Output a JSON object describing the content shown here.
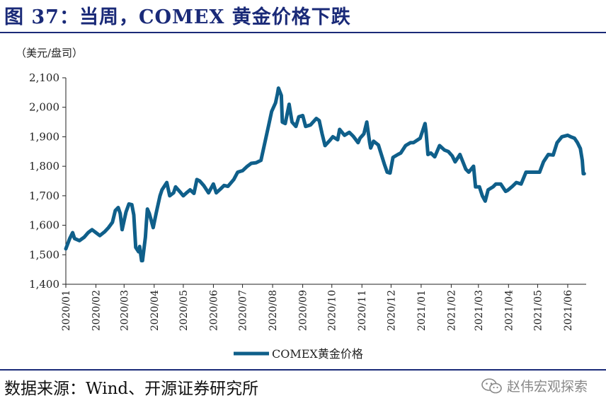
{
  "title": "图 37：当周，COMEX 黄金价格下跌",
  "source": "数据来源：Wind、开源证券研究所",
  "watermark": {
    "text": "赵伟宏观探索",
    "icon": "wechat-icon"
  },
  "colors": {
    "line": "#0f5f8a",
    "title": "#1a2a78"
  },
  "chart_data": {
    "type": "line",
    "title": "",
    "ylabel": "（美元/盘司）",
    "xlabel": "",
    "ylim": [
      1400,
      2100
    ],
    "y_ticks": [
      "1,400",
      "1,500",
      "1,600",
      "1,700",
      "1,800",
      "1,900",
      "2,000",
      "2,100"
    ],
    "y_tick_values": [
      1400,
      1500,
      1600,
      1700,
      1800,
      1900,
      2000,
      2100
    ],
    "x_ticks": [
      "2020/01",
      "2020/02",
      "2020/03",
      "2020/04",
      "2020/05",
      "2020/06",
      "2020/07",
      "2020/08",
      "2020/09",
      "2020/10",
      "2020/11",
      "2020/12",
      "2021/01",
      "2021/02",
      "2021/03",
      "2021/04",
      "2021/05",
      "2021/06"
    ],
    "grid": false,
    "legend": "bottom-center",
    "series": [
      {
        "name": "COMEX黄金价格",
        "x": [
          "2020-01-01",
          "2020-01-05",
          "2020-01-08",
          "2020-01-10",
          "2020-01-15",
          "2020-01-20",
          "2020-01-24",
          "2020-01-28",
          "2020-02-01",
          "2020-02-05",
          "2020-02-10",
          "2020-02-14",
          "2020-02-18",
          "2020-02-21",
          "2020-02-24",
          "2020-02-26",
          "2020-02-28",
          "2020-03-03",
          "2020-03-06",
          "2020-03-09",
          "2020-03-11",
          "2020-03-13",
          "2020-03-16",
          "2020-03-17",
          "2020-03-19",
          "2020-03-20",
          "2020-03-23",
          "2020-03-24",
          "2020-03-25",
          "2020-03-27",
          "2020-03-31",
          "2020-04-03",
          "2020-04-07",
          "2020-04-09",
          "2020-04-14",
          "2020-04-17",
          "2020-04-21",
          "2020-04-23",
          "2020-04-28",
          "2020-05-01",
          "2020-05-05",
          "2020-05-08",
          "2020-05-12",
          "2020-05-15",
          "2020-05-18",
          "2020-05-22",
          "2020-05-27",
          "2020-06-01",
          "2020-06-04",
          "2020-06-08",
          "2020-06-12",
          "2020-06-16",
          "2020-06-22",
          "2020-06-26",
          "2020-07-01",
          "2020-07-06",
          "2020-07-10",
          "2020-07-15",
          "2020-07-20",
          "2020-07-24",
          "2020-07-28",
          "2020-07-31",
          "2020-08-04",
          "2020-08-06",
          "2020-08-07",
          "2020-08-10",
          "2020-08-11",
          "2020-08-14",
          "2020-08-18",
          "2020-08-21",
          "2020-08-25",
          "2020-08-28",
          "2020-09-01",
          "2020-09-04",
          "2020-09-09",
          "2020-09-15",
          "2020-09-18",
          "2020-09-21",
          "2020-09-24",
          "2020-09-29",
          "2020-10-02",
          "2020-10-07",
          "2020-10-09",
          "2020-10-14",
          "2020-10-19",
          "2020-10-23",
          "2020-10-28",
          "2020-10-30",
          "2020-11-03",
          "2020-11-06",
          "2020-11-09",
          "2020-11-10",
          "2020-11-13",
          "2020-11-18",
          "2020-11-24",
          "2020-11-27",
          "2020-11-30",
          "2020-12-03",
          "2020-12-08",
          "2020-12-11",
          "2020-12-16",
          "2020-12-21",
          "2020-12-24",
          "2020-12-31",
          "2021-01-05",
          "2021-01-06",
          "2021-01-08",
          "2021-01-11",
          "2021-01-15",
          "2021-01-20",
          "2021-01-25",
          "2021-01-29",
          "2021-02-02",
          "2021-02-05",
          "2021-02-10",
          "2021-02-16",
          "2021-02-19",
          "2021-02-24",
          "2021-02-26",
          "2021-03-02",
          "2021-03-05",
          "2021-03-08",
          "2021-03-11",
          "2021-03-16",
          "2021-03-19",
          "2021-03-24",
          "2021-03-29",
          "2021-03-31",
          "2021-04-05",
          "2021-04-09",
          "2021-04-14",
          "2021-04-19",
          "2021-04-23",
          "2021-04-28",
          "2021-05-03",
          "2021-05-07",
          "2021-05-12",
          "2021-05-17",
          "2021-05-21",
          "2021-05-26",
          "2021-06-01",
          "2021-06-04",
          "2021-06-08",
          "2021-06-11",
          "2021-06-14",
          "2021-06-16",
          "2021-06-17",
          "2021-06-18"
        ],
        "values": [
          1520,
          1555,
          1575,
          1555,
          1548,
          1560,
          1575,
          1585,
          1575,
          1565,
          1578,
          1592,
          1610,
          1650,
          1660,
          1640,
          1585,
          1645,
          1672,
          1670,
          1635,
          1525,
          1510,
          1528,
          1480,
          1480,
          1560,
          1610,
          1655,
          1640,
          1592,
          1640,
          1700,
          1720,
          1745,
          1700,
          1710,
          1730,
          1712,
          1700,
          1712,
          1720,
          1708,
          1755,
          1750,
          1735,
          1710,
          1740,
          1710,
          1722,
          1735,
          1732,
          1755,
          1780,
          1785,
          1800,
          1810,
          1812,
          1820,
          1880,
          1940,
          1986,
          2015,
          2045,
          2065,
          2040,
          1950,
          1945,
          2010,
          1950,
          1935,
          1968,
          1972,
          1935,
          1940,
          1962,
          1955,
          1910,
          1870,
          1888,
          1900,
          1890,
          1925,
          1905,
          1915,
          1902,
          1880,
          1895,
          1910,
          1950,
          1880,
          1862,
          1885,
          1872,
          1808,
          1780,
          1777,
          1830,
          1840,
          1845,
          1870,
          1880,
          1880,
          1895,
          1945,
          1920,
          1840,
          1845,
          1832,
          1870,
          1855,
          1850,
          1835,
          1815,
          1840,
          1790,
          1780,
          1800,
          1730,
          1730,
          1700,
          1682,
          1720,
          1730,
          1740,
          1740,
          1715,
          1718,
          1732,
          1745,
          1740,
          1780,
          1780,
          1780,
          1780,
          1815,
          1840,
          1838,
          1880,
          1900,
          1905,
          1900,
          1895,
          1880,
          1860,
          1820,
          1775,
          1775
        ]
      }
    ]
  }
}
